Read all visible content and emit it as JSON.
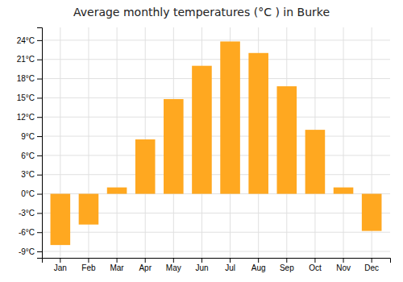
{
  "chart_data": {
    "type": "bar",
    "title": "Average monthly temperatures (°C ) in Burke",
    "categories": [
      "Jan",
      "Feb",
      "Mar",
      "Apr",
      "May",
      "Jun",
      "Jul",
      "Aug",
      "Sep",
      "Oct",
      "Nov",
      "Dec"
    ],
    "values": [
      -8,
      -4.8,
      1,
      8.5,
      14.8,
      20,
      23.8,
      22,
      16.8,
      10,
      1,
      -5.8
    ],
    "color": "#FFA820",
    "ylim": [
      -10,
      26
    ],
    "yticks": [
      {
        "value": -9,
        "label": "-9°C"
      },
      {
        "value": -6,
        "label": "-6°C"
      },
      {
        "value": -3,
        "label": "-3°C"
      },
      {
        "value": 0,
        "label": "0°C"
      },
      {
        "value": 3,
        "label": "3°C"
      },
      {
        "value": 6,
        "label": "6°C"
      },
      {
        "value": 9,
        "label": "9°C"
      },
      {
        "value": 12,
        "label": "12°C"
      },
      {
        "value": 15,
        "label": "15°C"
      },
      {
        "value": 18,
        "label": "18°C"
      },
      {
        "value": 21,
        "label": "21°C"
      },
      {
        "value": 24,
        "label": "24°C"
      }
    ],
    "grid": true
  }
}
